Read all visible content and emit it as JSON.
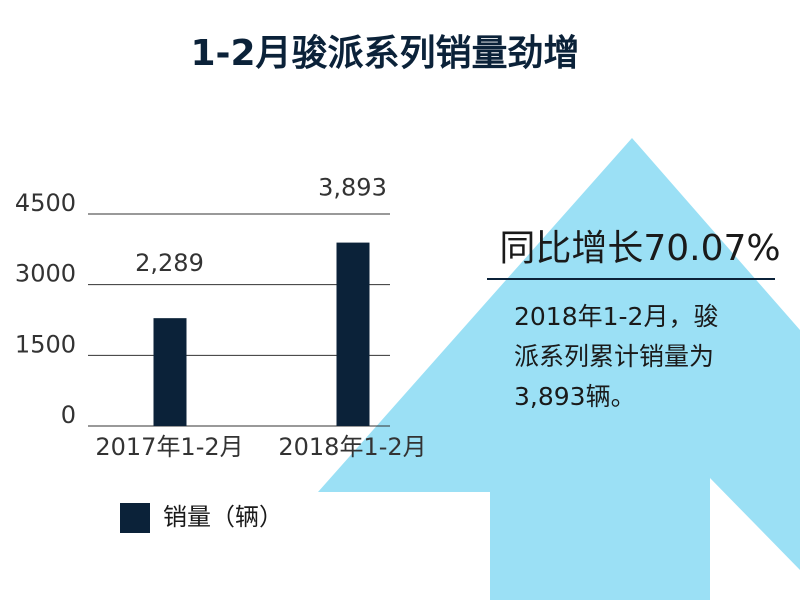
{
  "chart_data": {
    "type": "bar",
    "title": "1-2月骏派系列销量劲增",
    "categories": [
      "2017年1-2月",
      "2018年1-2月"
    ],
    "series": [
      {
        "name": "销量（辆）",
        "color": "#0b2239",
        "values": [
          2289,
          3893
        ],
        "value_labels": [
          "2,289",
          "3,893"
        ]
      }
    ],
    "ylim": [
      0,
      4500
    ],
    "yticks": [
      0,
      1500,
      3000,
      4500
    ],
    "grid": true,
    "legend": "bottom",
    "annotations": {
      "headline": "同比增长70.07%",
      "lines": [
        "2018年1-2月，骏",
        "派系列累计销量为",
        "3,893辆。"
      ]
    }
  }
}
